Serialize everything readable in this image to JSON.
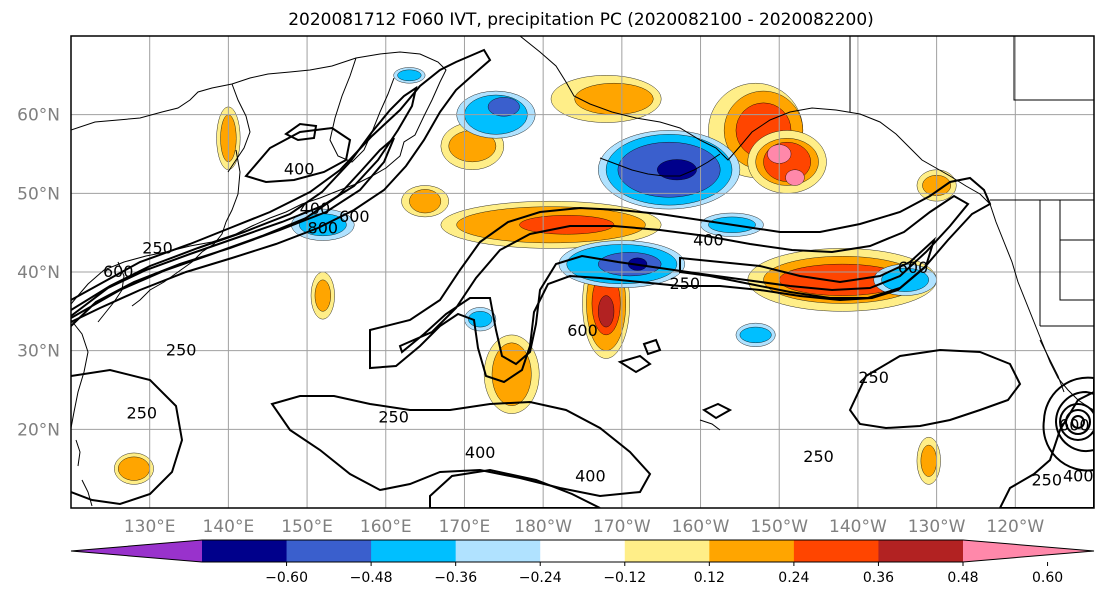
{
  "title": "2020081712 F060 IVT, precipitation PC (2020082100 - 2020082200)",
  "map": {
    "lon_range": [
      120,
      250
    ],
    "lat_range": [
      10,
      70
    ],
    "lat_ticks": [
      {
        "value": 30,
        "label": "30°N"
      },
      {
        "value": 40,
        "label": "40°N"
      },
      {
        "value": 50,
        "label": "50°N"
      },
      {
        "value": 60,
        "label": "60°N"
      }
    ],
    "lat_grid": [
      20,
      30,
      40,
      50,
      60
    ],
    "lon_ticks": [
      {
        "value": 130,
        "label": "130°E"
      },
      {
        "value": 140,
        "label": "140°E"
      },
      {
        "value": 150,
        "label": "150°E"
      },
      {
        "value": 160,
        "label": "160°E"
      },
      {
        "value": 170,
        "label": "170°E"
      },
      {
        "value": 180,
        "label": "180°W"
      },
      {
        "value": 190,
        "label": "170°W"
      },
      {
        "value": 200,
        "label": "160°W"
      },
      {
        "value": 210,
        "label": "150°W"
      },
      {
        "value": 220,
        "label": "140°W"
      },
      {
        "value": 230,
        "label": "130°W"
      },
      {
        "value": 240,
        "label": "120°W"
      }
    ],
    "extra_lat_labels": [
      {
        "value": 20,
        "label": "20°N"
      }
    ]
  },
  "colorbar": {
    "colors": [
      "#9932cc",
      "#00008b",
      "#3a5fcd",
      "#00bfff",
      "#b0e2ff",
      "#ffffff",
      "#ffee88",
      "#ffa500",
      "#ff4500",
      "#b22222",
      "#ff88aa"
    ],
    "labels": [
      "−0.60",
      "−0.48",
      "−0.36",
      "−0.24",
      "−0.12",
      "0.12",
      "0.24",
      "0.36",
      "0.48",
      "0.60"
    ]
  },
  "shading": [
    {
      "color": "#ffee88",
      "lon": 188,
      "lat": 62,
      "rx": 7,
      "ry": 3
    },
    {
      "color": "#ffa500",
      "lon": 189,
      "lat": 62,
      "rx": 5,
      "ry": 2
    },
    {
      "color": "#ffee88",
      "lon": 207,
      "lat": 58,
      "rx": 6,
      "ry": 6
    },
    {
      "color": "#ffa500",
      "lon": 208,
      "lat": 58,
      "rx": 5,
      "ry": 5
    },
    {
      "color": "#ff4500",
      "lon": 208,
      "lat": 58,
      "rx": 3.5,
      "ry": 3.5
    },
    {
      "color": "#ffee88",
      "lon": 211,
      "lat": 54,
      "rx": 5,
      "ry": 4
    },
    {
      "color": "#ffa500",
      "lon": 211,
      "lat": 54,
      "rx": 4,
      "ry": 3
    },
    {
      "color": "#ff4500",
      "lon": 211,
      "lat": 54,
      "rx": 3,
      "ry": 2.5
    },
    {
      "color": "#ff88aa",
      "lon": 210,
      "lat": 55,
      "rx": 1.5,
      "ry": 1.2
    },
    {
      "color": "#ff88aa",
      "lon": 212,
      "lat": 52,
      "rx": 1.2,
      "ry": 1
    },
    {
      "color": "#ffee88",
      "lon": 181,
      "lat": 46,
      "rx": 14,
      "ry": 3
    },
    {
      "color": "#ffa500",
      "lon": 181,
      "lat": 46,
      "rx": 12,
      "ry": 2.3
    },
    {
      "color": "#ff4500",
      "lon": 183,
      "lat": 46,
      "rx": 6,
      "ry": 1.2
    },
    {
      "color": "#ffee88",
      "lon": 218,
      "lat": 39,
      "rx": 12,
      "ry": 4
    },
    {
      "color": "#ffa500",
      "lon": 218,
      "lat": 39,
      "rx": 10,
      "ry": 3
    },
    {
      "color": "#ff4500",
      "lon": 218,
      "lat": 39,
      "rx": 8,
      "ry": 2
    },
    {
      "color": "#ffee88",
      "lon": 188,
      "lat": 36,
      "rx": 3,
      "ry": 7
    },
    {
      "color": "#ffa500",
      "lon": 188,
      "lat": 36,
      "rx": 2.5,
      "ry": 6
    },
    {
      "color": "#ff4500",
      "lon": 188,
      "lat": 36,
      "rx": 1.8,
      "ry": 4
    },
    {
      "color": "#b22222",
      "lon": 188,
      "lat": 35,
      "rx": 1,
      "ry": 2
    },
    {
      "color": "#ffee88",
      "lon": 176,
      "lat": 27,
      "rx": 3.5,
      "ry": 5
    },
    {
      "color": "#ffa500",
      "lon": 176,
      "lat": 27,
      "rx": 2.5,
      "ry": 4
    },
    {
      "color": "#ffee88",
      "lon": 171,
      "lat": 56,
      "rx": 4,
      "ry": 3
    },
    {
      "color": "#ffa500",
      "lon": 171,
      "lat": 56,
      "rx": 3,
      "ry": 2
    },
    {
      "color": "#ffee88",
      "lon": 165,
      "lat": 49,
      "rx": 3,
      "ry": 2
    },
    {
      "color": "#ffa500",
      "lon": 165,
      "lat": 49,
      "rx": 2,
      "ry": 1.5
    },
    {
      "color": "#ffee88",
      "lon": 229,
      "lat": 16,
      "rx": 1.5,
      "ry": 3
    },
    {
      "color": "#ffa500",
      "lon": 229,
      "lat": 16,
      "rx": 1,
      "ry": 2
    },
    {
      "color": "#ffee88",
      "lon": 128,
      "lat": 15,
      "rx": 2.5,
      "ry": 2
    },
    {
      "color": "#ffa500",
      "lon": 128,
      "lat": 15,
      "rx": 2,
      "ry": 1.5
    },
    {
      "color": "#ffee88",
      "lon": 152,
      "lat": 37,
      "rx": 1.5,
      "ry": 3
    },
    {
      "color": "#ffa500",
      "lon": 152,
      "lat": 37,
      "rx": 1,
      "ry": 2
    },
    {
      "color": "#ffee88",
      "lon": 140,
      "lat": 57,
      "rx": 1.5,
      "ry": 4
    },
    {
      "color": "#ffa500",
      "lon": 140,
      "lat": 57,
      "rx": 1,
      "ry": 3
    },
    {
      "color": "#ffee88",
      "lon": 230,
      "lat": 51,
      "rx": 2.5,
      "ry": 2
    },
    {
      "color": "#ffa500",
      "lon": 230,
      "lat": 51,
      "rx": 1.8,
      "ry": 1.3
    },
    {
      "color": "#b0e2ff",
      "lon": 196,
      "lat": 53,
      "rx": 9,
      "ry": 5
    },
    {
      "color": "#00bfff",
      "lon": 196,
      "lat": 53,
      "rx": 8,
      "ry": 4.5
    },
    {
      "color": "#3a5fcd",
      "lon": 196,
      "lat": 53,
      "rx": 6.5,
      "ry": 3.5
    },
    {
      "color": "#00008b",
      "lon": 197,
      "lat": 53,
      "rx": 2.5,
      "ry": 1.3
    },
    {
      "color": "#b0e2ff",
      "lon": 174,
      "lat": 60,
      "rx": 5,
      "ry": 3
    },
    {
      "color": "#00bfff",
      "lon": 174,
      "lat": 60,
      "rx": 4,
      "ry": 2.5
    },
    {
      "color": "#3a5fcd",
      "lon": 175,
      "lat": 61,
      "rx": 2,
      "ry": 1.2
    },
    {
      "color": "#b0e2ff",
      "lon": 190,
      "lat": 41,
      "rx": 8,
      "ry": 3
    },
    {
      "color": "#00bfff",
      "lon": 190,
      "lat": 41,
      "rx": 7,
      "ry": 2.5
    },
    {
      "color": "#3a5fcd",
      "lon": 191,
      "lat": 41,
      "rx": 4,
      "ry": 1.5
    },
    {
      "color": "#00008b",
      "lon": 192,
      "lat": 41,
      "rx": 1.2,
      "ry": 0.8
    },
    {
      "color": "#b0e2ff",
      "lon": 204,
      "lat": 46,
      "rx": 4,
      "ry": 1.5
    },
    {
      "color": "#00bfff",
      "lon": 204,
      "lat": 46,
      "rx": 3,
      "ry": 1
    },
    {
      "color": "#b0e2ff",
      "lon": 226,
      "lat": 39,
      "rx": 4,
      "ry": 2
    },
    {
      "color": "#00bfff",
      "lon": 226,
      "lat": 39,
      "rx": 3,
      "ry": 1.5
    },
    {
      "color": "#b0e2ff",
      "lon": 152,
      "lat": 46,
      "rx": 4,
      "ry": 2
    },
    {
      "color": "#00bfff",
      "lon": 152,
      "lat": 46,
      "rx": 3,
      "ry": 1.4
    },
    {
      "color": "#b0e2ff",
      "lon": 172,
      "lat": 34,
      "rx": 2,
      "ry": 1.5
    },
    {
      "color": "#00bfff",
      "lon": 172,
      "lat": 34,
      "rx": 1.5,
      "ry": 1
    },
    {
      "color": "#b0e2ff",
      "lon": 207,
      "lat": 32,
      "rx": 2.5,
      "ry": 1.5
    },
    {
      "color": "#00bfff",
      "lon": 207,
      "lat": 32,
      "rx": 2,
      "ry": 1
    },
    {
      "color": "#b0e2ff",
      "lon": 163,
      "lat": 65,
      "rx": 2,
      "ry": 1
    },
    {
      "color": "#00bfff",
      "lon": 163,
      "lat": 65,
      "rx": 1.5,
      "ry": 0.7
    }
  ],
  "contour_labels": [
    {
      "text": "400",
      "lon": 149,
      "lat": 53
    },
    {
      "text": "400",
      "lon": 151,
      "lat": 48
    },
    {
      "text": "800",
      "lon": 152,
      "lat": 45.5
    },
    {
      "text": "600",
      "lon": 156,
      "lat": 47
    },
    {
      "text": "250",
      "lon": 131,
      "lat": 43
    },
    {
      "text": "600",
      "lon": 126,
      "lat": 40
    },
    {
      "text": "250",
      "lon": 134,
      "lat": 30
    },
    {
      "text": "250",
      "lon": 129,
      "lat": 22
    },
    {
      "text": "400",
      "lon": 201,
      "lat": 44
    },
    {
      "text": "250",
      "lon": 198,
      "lat": 38.5
    },
    {
      "text": "600",
      "lon": 227,
      "lat": 40.5
    },
    {
      "text": "600",
      "lon": 185,
      "lat": 32.5
    },
    {
      "text": "250",
      "lon": 161,
      "lat": 21.5
    },
    {
      "text": "400",
      "lon": 172,
      "lat": 17
    },
    {
      "text": "400",
      "lon": 186,
      "lat": 14
    },
    {
      "text": "250",
      "lon": 215,
      "lat": 16.5
    },
    {
      "text": "250",
      "lon": 222,
      "lat": 26.5
    },
    {
      "text": "250",
      "lon": 244,
      "lat": 13.5
    },
    {
      "text": "400",
      "lon": 248,
      "lat": 14
    },
    {
      "text": "600",
      "lon": 247.5,
      "lat": 20.5
    }
  ]
}
